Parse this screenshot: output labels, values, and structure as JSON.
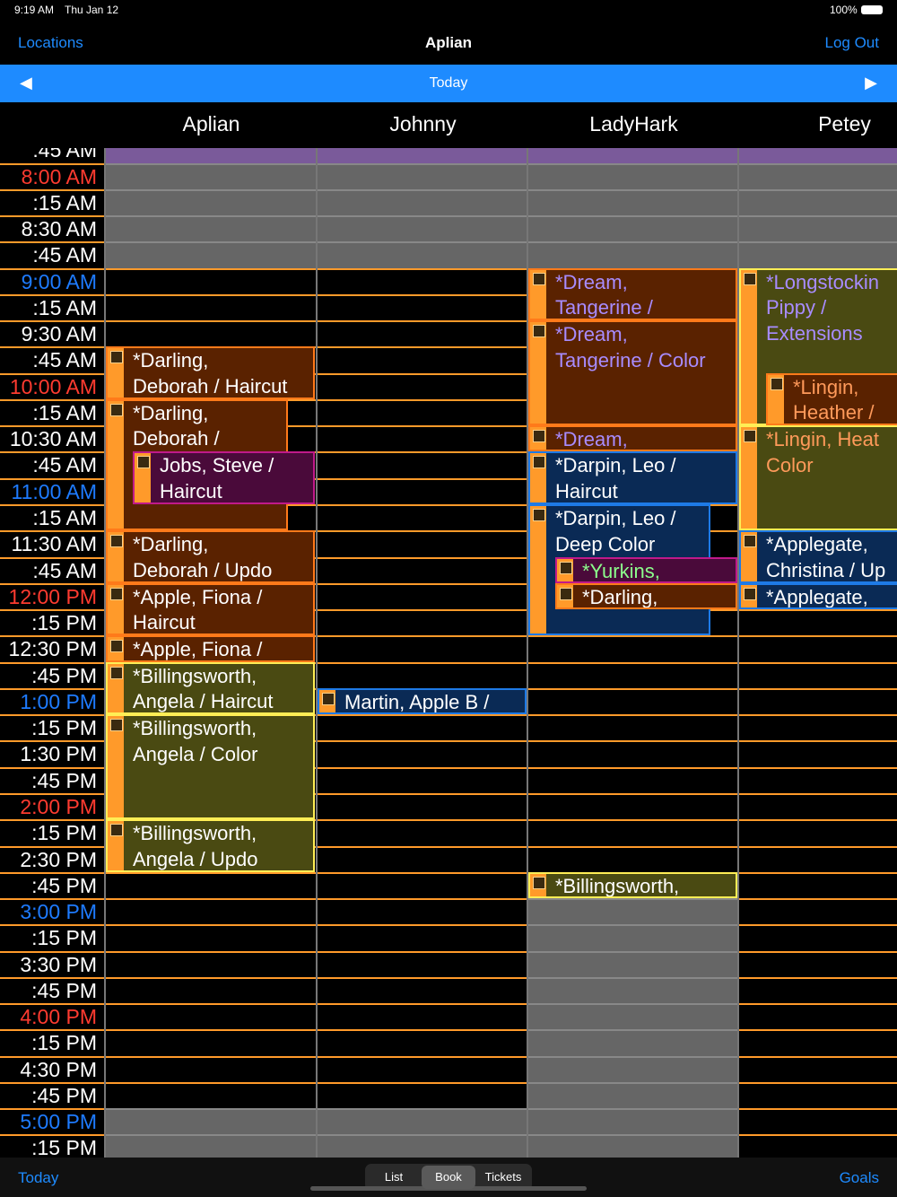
{
  "status_bar": {
    "time": "9:19 AM",
    "date": "Thu Jan 12",
    "battery": "100%"
  },
  "nav_bar": {
    "left": "Locations",
    "title": "Aplian",
    "right": "Log Out"
  },
  "date_bar": {
    "label": "Today"
  },
  "columns": [
    "Aplian",
    "Johnny",
    "LadyHark",
    "Petey"
  ],
  "time_slots": [
    ":45 AM",
    "8:00 AM",
    ":15 AM",
    "8:30 AM",
    ":45 AM",
    "9:00 AM",
    ":15 AM",
    "9:30 AM",
    ":45 AM",
    "10:00 AM",
    ":15 AM",
    "10:30 AM",
    ":45 AM",
    "11:00 AM",
    ":15 AM",
    "11:30 AM",
    ":45 AM",
    "12:00 PM",
    ":15 PM",
    "12:30 PM",
    ":45 PM",
    "1:00 PM",
    ":15 PM",
    "1:30 PM",
    ":45 PM",
    "2:00 PM",
    ":15 PM",
    "2:30 PM",
    ":45 PM",
    "3:00 PM",
    ":15 PM",
    "3:30 PM",
    ":45 PM",
    "4:00 PM",
    ":15 PM",
    "4:30 PM",
    ":45 PM",
    "5:00 PM",
    ":15 PM"
  ],
  "appointments": [
    {
      "lines": [
        "*Darling,",
        "Deborah / Haircut"
      ]
    },
    {
      "lines": [
        "*Darling,",
        "Deborah /"
      ]
    },
    {
      "lines": [
        "Jobs, Steve /",
        "Haircut"
      ]
    },
    {
      "lines": [
        "*Darling,",
        "Deborah / Updo"
      ]
    },
    {
      "lines": [
        "*Apple, Fiona /",
        "Haircut"
      ]
    },
    {
      "lines": [
        "*Apple, Fiona /"
      ]
    },
    {
      "lines": [
        "*Billingsworth,",
        "Angela / Haircut"
      ]
    },
    {
      "lines": [
        "*Billingsworth,",
        "Angela / Color"
      ]
    },
    {
      "lines": [
        "*Billingsworth,",
        "Angela / Updo"
      ]
    },
    {
      "lines": [
        "Martin, Apple B /"
      ]
    },
    {
      "lines": [
        "*Dream,",
        "Tangerine /"
      ]
    },
    {
      "lines": [
        "*Dream,",
        "Tangerine / Color"
      ]
    },
    {
      "lines": [
        "*Dream,"
      ]
    },
    {
      "lines": [
        "*Darpin, Leo /",
        "Haircut"
      ]
    },
    {
      "lines": [
        "*Darpin, Leo /",
        "Deep Color"
      ]
    },
    {
      "lines": [
        "*Yurkins,"
      ]
    },
    {
      "lines": [
        "*Darling,"
      ]
    },
    {
      "lines": [
        "*Billingsworth,"
      ]
    },
    {
      "lines": [
        "*Longstockin",
        "Pippy /",
        "Extensions"
      ]
    },
    {
      "lines": [
        "*Lingin,",
        "Heather /"
      ]
    },
    {
      "lines": [
        "*Lingin, Heat",
        "Color"
      ]
    },
    {
      "lines": [
        "*Applegate,",
        "Christina / Up"
      ]
    },
    {
      "lines": [
        "*Applegate,"
      ]
    }
  ],
  "toolbar": {
    "left": "Today",
    "tabs": [
      "List",
      "Book",
      "Tickets"
    ],
    "right": "Goals"
  }
}
